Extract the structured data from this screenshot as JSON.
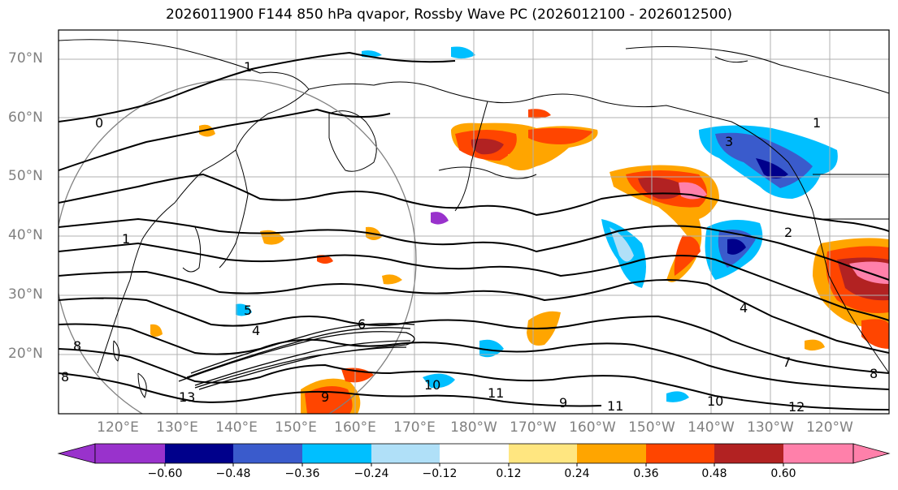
{
  "title": "2026011900 F144 850 hPa qvapor, Rossby Wave PC (2026012100 - 2026012500)",
  "lat_labels": [
    "70°N",
    "60°N",
    "50°N",
    "40°N",
    "30°N",
    "20°N"
  ],
  "lon_labels": [
    "120°E",
    "130°E",
    "140°E",
    "150°E",
    "160°E",
    "170°E",
    "180°W",
    "170°W",
    "160°W",
    "150°W",
    "140°W",
    "130°W",
    "120°W"
  ],
  "contour_labels": [
    "1",
    "0",
    "3",
    "2",
    "4",
    "7",
    "1",
    "6",
    "5",
    "4",
    "9",
    "8",
    "10",
    "11",
    "9",
    "11",
    "10",
    "12",
    "13",
    "8",
    "8",
    "1"
  ],
  "colorbar": {
    "ticks": [
      "−0.60",
      "−0.48",
      "−0.36",
      "−0.24",
      "−0.12",
      "0.12",
      "0.24",
      "0.36",
      "0.48",
      "0.60"
    ],
    "colors": [
      "#9932cc",
      "#00008b",
      "#3a5bcc",
      "#00bfff",
      "#b0e0f8",
      "#ffffff",
      "#ffe680",
      "#ffa500",
      "#ff4500",
      "#b22222",
      "#ff80aa"
    ],
    "under_color": "#9932cc",
    "over_color": "#ff80aa"
  }
}
